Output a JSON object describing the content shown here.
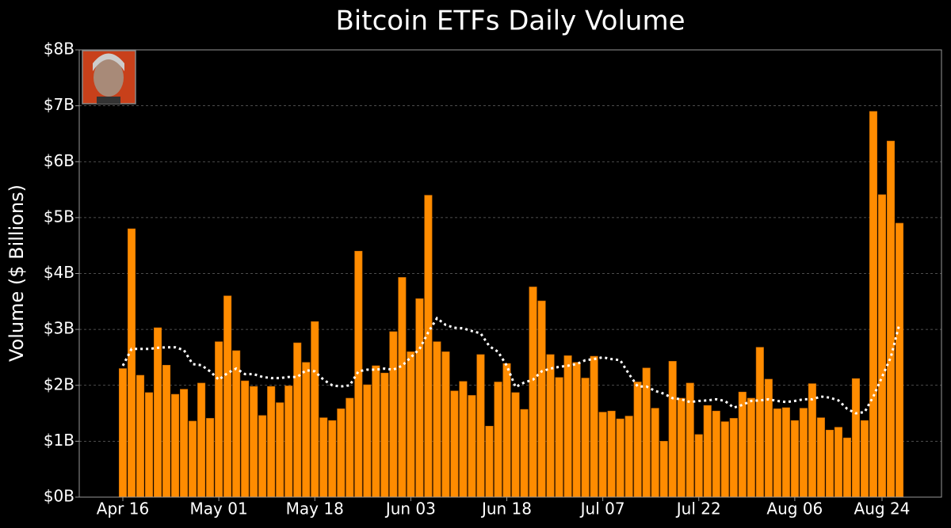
{
  "chart_data": {
    "type": "bar",
    "title": "Bitcoin ETFs Daily Volume",
    "y_label": "Volume ($ Billions)",
    "categories": [
      "Apr 16",
      null,
      null,
      null,
      null,
      null,
      null,
      null,
      null,
      null,
      null,
      "May 01",
      null,
      null,
      null,
      null,
      null,
      null,
      null,
      null,
      null,
      null,
      "May 18",
      null,
      null,
      null,
      null,
      null,
      null,
      null,
      null,
      null,
      null,
      "Jun 03",
      null,
      null,
      null,
      null,
      null,
      null,
      null,
      null,
      null,
      null,
      "Jun 18",
      null,
      null,
      null,
      null,
      null,
      null,
      null,
      null,
      null,
      null,
      "Jul 07",
      null,
      null,
      null,
      null,
      null,
      null,
      null,
      null,
      null,
      null,
      "Jul 22",
      null,
      null,
      null,
      null,
      null,
      null,
      null,
      null,
      null,
      null,
      "Aug 06",
      null,
      null,
      null,
      null,
      null,
      null,
      null,
      null,
      null,
      "Aug 24",
      null,
      null
    ],
    "series": [
      {
        "type": "bar",
        "color": "#ff8c00",
        "values": [
          2.3,
          4.8,
          2.18,
          1.87,
          3.03,
          2.36,
          1.84,
          1.93,
          1.36,
          2.04,
          1.41,
          2.78,
          3.6,
          2.62,
          2.08,
          1.98,
          1.46,
          1.98,
          1.69,
          1.99,
          2.76,
          2.41,
          3.14,
          1.42,
          1.37,
          1.58,
          1.77,
          4.4,
          2.01,
          2.35,
          2.22,
          2.96,
          3.93,
          2.6,
          3.55,
          5.4,
          2.78,
          2.6,
          1.9,
          2.07,
          1.82,
          2.55,
          1.27,
          2.06,
          2.39,
          1.87,
          1.57,
          3.76,
          3.51,
          2.55,
          2.14,
          2.53,
          2.41,
          2.13,
          2.52,
          1.52,
          1.54,
          1.4,
          1.45,
          2.06,
          2.31,
          1.59,
          1.0,
          2.43,
          1.77,
          2.04,
          1.12,
          1.64,
          1.54,
          1.35,
          1.41,
          1.88,
          1.77,
          2.68,
          2.11,
          1.58,
          1.6,
          1.37,
          1.59,
          2.03,
          1.42,
          1.2,
          1.25,
          1.06,
          2.12,
          1.37,
          6.9,
          5.41,
          6.37,
          4.9
        ]
      },
      {
        "type": "line",
        "color": "#ffffff",
        "style": "dotted",
        "values": [
          2.35,
          2.65,
          2.65,
          2.65,
          2.67,
          2.68,
          2.68,
          2.63,
          2.38,
          2.36,
          2.25,
          2.1,
          2.22,
          2.3,
          2.2,
          2.2,
          2.15,
          2.13,
          2.13,
          2.15,
          2.15,
          2.27,
          2.25,
          2.1,
          2.0,
          1.98,
          2.0,
          2.25,
          2.28,
          2.28,
          2.3,
          2.28,
          2.35,
          2.5,
          2.65,
          2.95,
          3.2,
          3.08,
          3.03,
          3.02,
          2.97,
          2.93,
          2.7,
          2.6,
          2.35,
          1.97,
          2.05,
          2.1,
          2.25,
          2.3,
          2.33,
          2.35,
          2.38,
          2.45,
          2.47,
          2.5,
          2.47,
          2.45,
          2.2,
          1.98,
          1.98,
          1.9,
          1.85,
          1.77,
          1.75,
          1.7,
          1.72,
          1.73,
          1.75,
          1.72,
          1.6,
          1.65,
          1.72,
          1.73,
          1.75,
          1.72,
          1.7,
          1.72,
          1.75,
          1.75,
          1.8,
          1.78,
          1.73,
          1.58,
          1.5,
          1.52,
          1.8,
          2.15,
          2.5,
          3.1
        ]
      }
    ],
    "ylim": [
      0,
      8
    ],
    "yticks": [
      {
        "value": 0,
        "label": "$0B"
      },
      {
        "value": 1,
        "label": "$1B"
      },
      {
        "value": 2,
        "label": "$2B"
      },
      {
        "value": 3,
        "label": "$3B"
      },
      {
        "value": 4,
        "label": "$4B"
      },
      {
        "value": 5,
        "label": "$5B"
      },
      {
        "value": 6,
        "label": "$6B"
      },
      {
        "value": 7,
        "label": "$7B"
      },
      {
        "value": 8,
        "label": "$8B"
      }
    ],
    "grid": true
  }
}
